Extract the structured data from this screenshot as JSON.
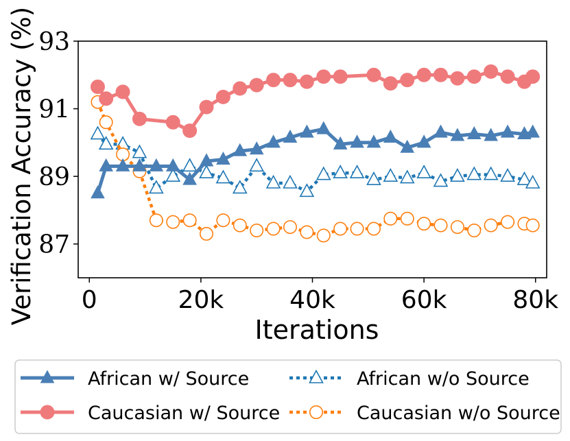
{
  "chart_data": {
    "type": "line",
    "xlabel": "Iterations",
    "ylabel": "Verification Accuracy (%)",
    "xlim": [
      -2000,
      82000
    ],
    "ylim": [
      86,
      93
    ],
    "xticks": [
      0,
      20000,
      40000,
      60000,
      80000
    ],
    "xtick_labels": [
      "0",
      "20k",
      "40k",
      "60k",
      "80k"
    ],
    "yticks": [
      87,
      89,
      91,
      93
    ],
    "ytick_labels": [
      "87",
      "89",
      "91",
      "93"
    ],
    "grid": false,
    "legend_position": "bottom, outside plot, 2 columns",
    "series": [
      {
        "name": "African w/ Source",
        "color": "#4a7fb5",
        "line": "solid",
        "marker": "filled-triangle",
        "x": [
          1500,
          3000,
          6000,
          9000,
          12000,
          15000,
          18000,
          21000,
          24000,
          27000,
          30000,
          33000,
          36000,
          39000,
          42000,
          45000,
          48000,
          51000,
          54000,
          57000,
          60000,
          63000,
          66000,
          69000,
          72000,
          75000,
          78000,
          79500
        ],
        "y": [
          88.5,
          89.3,
          89.3,
          89.3,
          89.3,
          89.3,
          88.9,
          89.45,
          89.5,
          89.75,
          89.8,
          90.0,
          90.15,
          90.3,
          90.4,
          89.95,
          90.0,
          90.0,
          90.15,
          89.85,
          90.0,
          90.3,
          90.2,
          90.25,
          90.2,
          90.3,
          90.25,
          90.3
        ]
      },
      {
        "name": "Caucasian w/ Source",
        "color": "#ef7a7c",
        "line": "solid",
        "marker": "filled-circle",
        "x": [
          1500,
          3000,
          6000,
          9000,
          15000,
          18000,
          21000,
          24000,
          27000,
          30000,
          33000,
          36000,
          39000,
          42000,
          45000,
          51000,
          54000,
          57000,
          60000,
          63000,
          66000,
          69000,
          72000,
          75000,
          78000,
          79500
        ],
        "y": [
          91.65,
          91.3,
          91.5,
          90.7,
          90.6,
          90.35,
          91.05,
          91.35,
          91.6,
          91.7,
          91.85,
          91.85,
          91.8,
          91.95,
          91.95,
          92.0,
          91.75,
          91.85,
          92.0,
          92.0,
          91.9,
          91.95,
          92.1,
          91.95,
          91.8,
          91.95
        ]
      },
      {
        "name": "African w/o Source",
        "color": "#1f77b4",
        "line": "dotted",
        "marker": "hollow-triangle",
        "x": [
          1500,
          3000,
          6000,
          9000,
          12000,
          15000,
          18000,
          21000,
          24000,
          27000,
          30000,
          33000,
          36000,
          39000,
          42000,
          45000,
          48000,
          51000,
          54000,
          57000,
          60000,
          63000,
          66000,
          69000,
          72000,
          75000,
          78000,
          79500
        ],
        "y": [
          90.25,
          89.95,
          89.95,
          89.7,
          88.65,
          89.0,
          89.3,
          89.1,
          88.95,
          88.65,
          89.3,
          88.8,
          88.8,
          88.55,
          89.05,
          89.1,
          89.1,
          88.9,
          89.0,
          88.95,
          89.1,
          88.85,
          89.0,
          89.05,
          89.05,
          89.0,
          88.9,
          88.8
        ]
      },
      {
        "name": "Caucasian w/o Source",
        "color": "#ff7f0e",
        "line": "dotted",
        "marker": "hollow-circle",
        "x": [
          1500,
          3000,
          6000,
          9000,
          12000,
          15000,
          18000,
          21000,
          24000,
          27000,
          30000,
          33000,
          36000,
          39000,
          42000,
          45000,
          48000,
          51000,
          54000,
          57000,
          60000,
          63000,
          66000,
          69000,
          72000,
          75000,
          78000,
          79500
        ],
        "y": [
          91.2,
          90.6,
          89.65,
          89.15,
          87.7,
          87.65,
          87.7,
          87.3,
          87.7,
          87.55,
          87.4,
          87.45,
          87.5,
          87.35,
          87.25,
          87.45,
          87.45,
          87.45,
          87.75,
          87.75,
          87.6,
          87.55,
          87.5,
          87.4,
          87.55,
          87.65,
          87.6,
          87.55
        ]
      }
    ]
  }
}
